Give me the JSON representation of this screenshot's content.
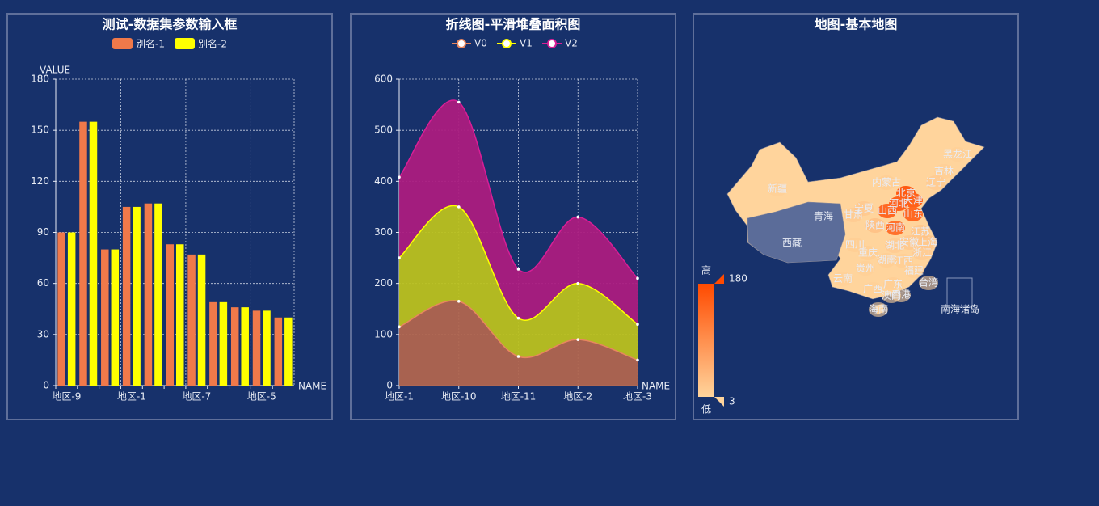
{
  "chart_data": [
    {
      "type": "bar",
      "title": "测试-数据集参数输入框",
      "y_axis_name": "VALUE",
      "x_axis_name": "NAME",
      "categories": [
        "地区-9",
        null,
        null,
        "地区-1",
        null,
        null,
        "地区-7",
        null,
        null,
        "地区-5",
        null
      ],
      "series": [
        {
          "name": "别名-1",
          "color": "#f0794a",
          "values": [
            90,
            155,
            80,
            105,
            107,
            83,
            77,
            49,
            46,
            44,
            40
          ]
        },
        {
          "name": "别名-2",
          "color": "#ffff00",
          "values": [
            90,
            155,
            80,
            105,
            107,
            83,
            77,
            49,
            46,
            44,
            40
          ]
        }
      ],
      "ylim": [
        0,
        180
      ],
      "yticks": [
        0,
        30,
        60,
        90,
        120,
        150,
        180
      ],
      "grid": true
    },
    {
      "type": "stacked-area",
      "title": "折线图-平滑堆叠面积图",
      "x_axis_name": "NAME",
      "smooth": true,
      "categories": [
        "地区-1",
        "地区-10",
        "地区-11",
        "地区-2",
        "地区-3"
      ],
      "series": [
        {
          "name": "V0",
          "color": "#e8865f",
          "area_color": "#b0654f",
          "values": [
            115,
            165,
            57,
            90,
            50
          ]
        },
        {
          "name": "V1",
          "color": "#ffff00",
          "area_color": "#bbc11f",
          "values": [
            135,
            185,
            75,
            110,
            70
          ]
        },
        {
          "name": "V2",
          "color": "#d81e96",
          "area_color": "#ab1c7f",
          "values": [
            158,
            205,
            96,
            130,
            90
          ]
        }
      ],
      "ylim": [
        0,
        600
      ],
      "yticks": [
        0,
        100,
        200,
        300,
        400,
        500,
        600
      ],
      "grid": true
    },
    {
      "type": "map",
      "title": "地图-基本地图",
      "visual_map": {
        "min": 3,
        "max": 180,
        "text": [
          "高",
          "低"
        ],
        "colors": [
          "#ffd49c",
          "#ff4a00"
        ],
        "no_data_color": "#5b6c99"
      },
      "regions": [
        {
          "name": "新疆",
          "value": 10
        },
        {
          "name": "西藏",
          "value": null
        },
        {
          "name": "青海",
          "value": null
        },
        {
          "name": "甘肃",
          "value": 20
        },
        {
          "name": "宁夏",
          "value": 25
        },
        {
          "name": "内蒙古",
          "value": 15
        },
        {
          "name": "黑龙江",
          "value": 10
        },
        {
          "name": "吉林",
          "value": 12
        },
        {
          "name": "辽宁",
          "value": 20
        },
        {
          "name": "北京",
          "value": 160
        },
        {
          "name": "天津",
          "value": 150
        },
        {
          "name": "河北",
          "value": 150
        },
        {
          "name": "山西",
          "value": 140
        },
        {
          "name": "山东",
          "value": 140
        },
        {
          "name": "陕西",
          "value": 40
        },
        {
          "name": "河南",
          "value": 130
        },
        {
          "name": "江苏",
          "value": 30
        },
        {
          "name": "上海",
          "value": 30
        },
        {
          "name": "安徽",
          "value": 25
        },
        {
          "name": "湖北",
          "value": 20
        },
        {
          "name": "四川",
          "value": 15
        },
        {
          "name": "重庆",
          "value": 15
        },
        {
          "name": "浙江",
          "value": 20
        },
        {
          "name": "湖南",
          "value": 15
        },
        {
          "name": "江西",
          "value": 15
        },
        {
          "name": "贵州",
          "value": 10
        },
        {
          "name": "福建",
          "value": 12
        },
        {
          "name": "云南",
          "value": 10
        },
        {
          "name": "台湾",
          "value": 10
        },
        {
          "name": "广西",
          "value": 10
        },
        {
          "name": "广东",
          "value": 15
        },
        {
          "name": "澳门",
          "value": 5
        },
        {
          "name": "香港",
          "value": 5
        },
        {
          "name": "海南",
          "value": 5
        },
        {
          "name": "南海诸岛",
          "value": null
        }
      ]
    }
  ]
}
